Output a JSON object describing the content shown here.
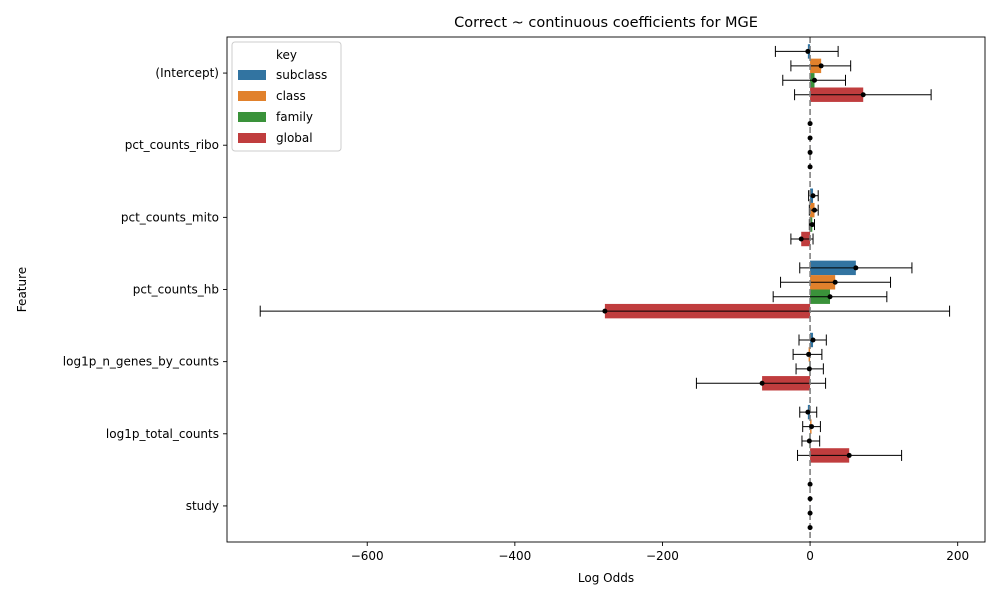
{
  "chart_data": {
    "type": "bar",
    "orientation": "horizontal",
    "title": "Correct ~ continuous coefficients for MGE",
    "xlabel": "Log Odds",
    "ylabel": "Feature",
    "xlim": [
      -790,
      237
    ],
    "xticks": [
      -600,
      -400,
      -200,
      0,
      200
    ],
    "xtick_labels": [
      "−600",
      "−400",
      "−200",
      "0",
      "200"
    ],
    "reference_line": 0,
    "legend": {
      "title": "key",
      "placement": "top-left"
    },
    "categories": [
      "(Intercept)",
      "pct_counts_ribo",
      "pct_counts_mito",
      "pct_counts_hb",
      "log1p_n_genes_by_counts",
      "log1p_total_counts",
      "study"
    ],
    "series": [
      {
        "name": "subclass",
        "color": "#3274a1",
        "values": [
          -3,
          0,
          4,
          62,
          4,
          -3,
          0
        ],
        "ci_low": [
          -47,
          0,
          -2,
          -14,
          -15,
          -14,
          0
        ],
        "ci_high": [
          38,
          0,
          11,
          138,
          22,
          9,
          0
        ]
      },
      {
        "name": "class",
        "color": "#e1812c",
        "values": [
          15,
          0,
          6,
          34,
          -2,
          2,
          0
        ],
        "ci_low": [
          -26,
          0,
          -1,
          -40,
          -23,
          -10,
          0
        ],
        "ci_high": [
          55,
          0,
          11,
          109,
          16,
          14,
          0
        ]
      },
      {
        "name": "family",
        "color": "#3a923a",
        "values": [
          6,
          0,
          3,
          27,
          -1,
          -1,
          0
        ],
        "ci_low": [
          -37,
          0,
          -1,
          -50,
          -19,
          -11,
          0
        ],
        "ci_high": [
          48,
          0,
          6,
          104,
          18,
          13,
          0
        ]
      },
      {
        "name": "global",
        "color": "#c03d3e",
        "values": [
          72,
          0,
          -12,
          -278,
          -65,
          53,
          0
        ],
        "ci_low": [
          -21,
          0,
          -26,
          -745,
          -154,
          -17,
          0
        ],
        "ci_high": [
          164,
          0,
          4,
          189,
          21,
          124,
          0
        ]
      }
    ]
  }
}
